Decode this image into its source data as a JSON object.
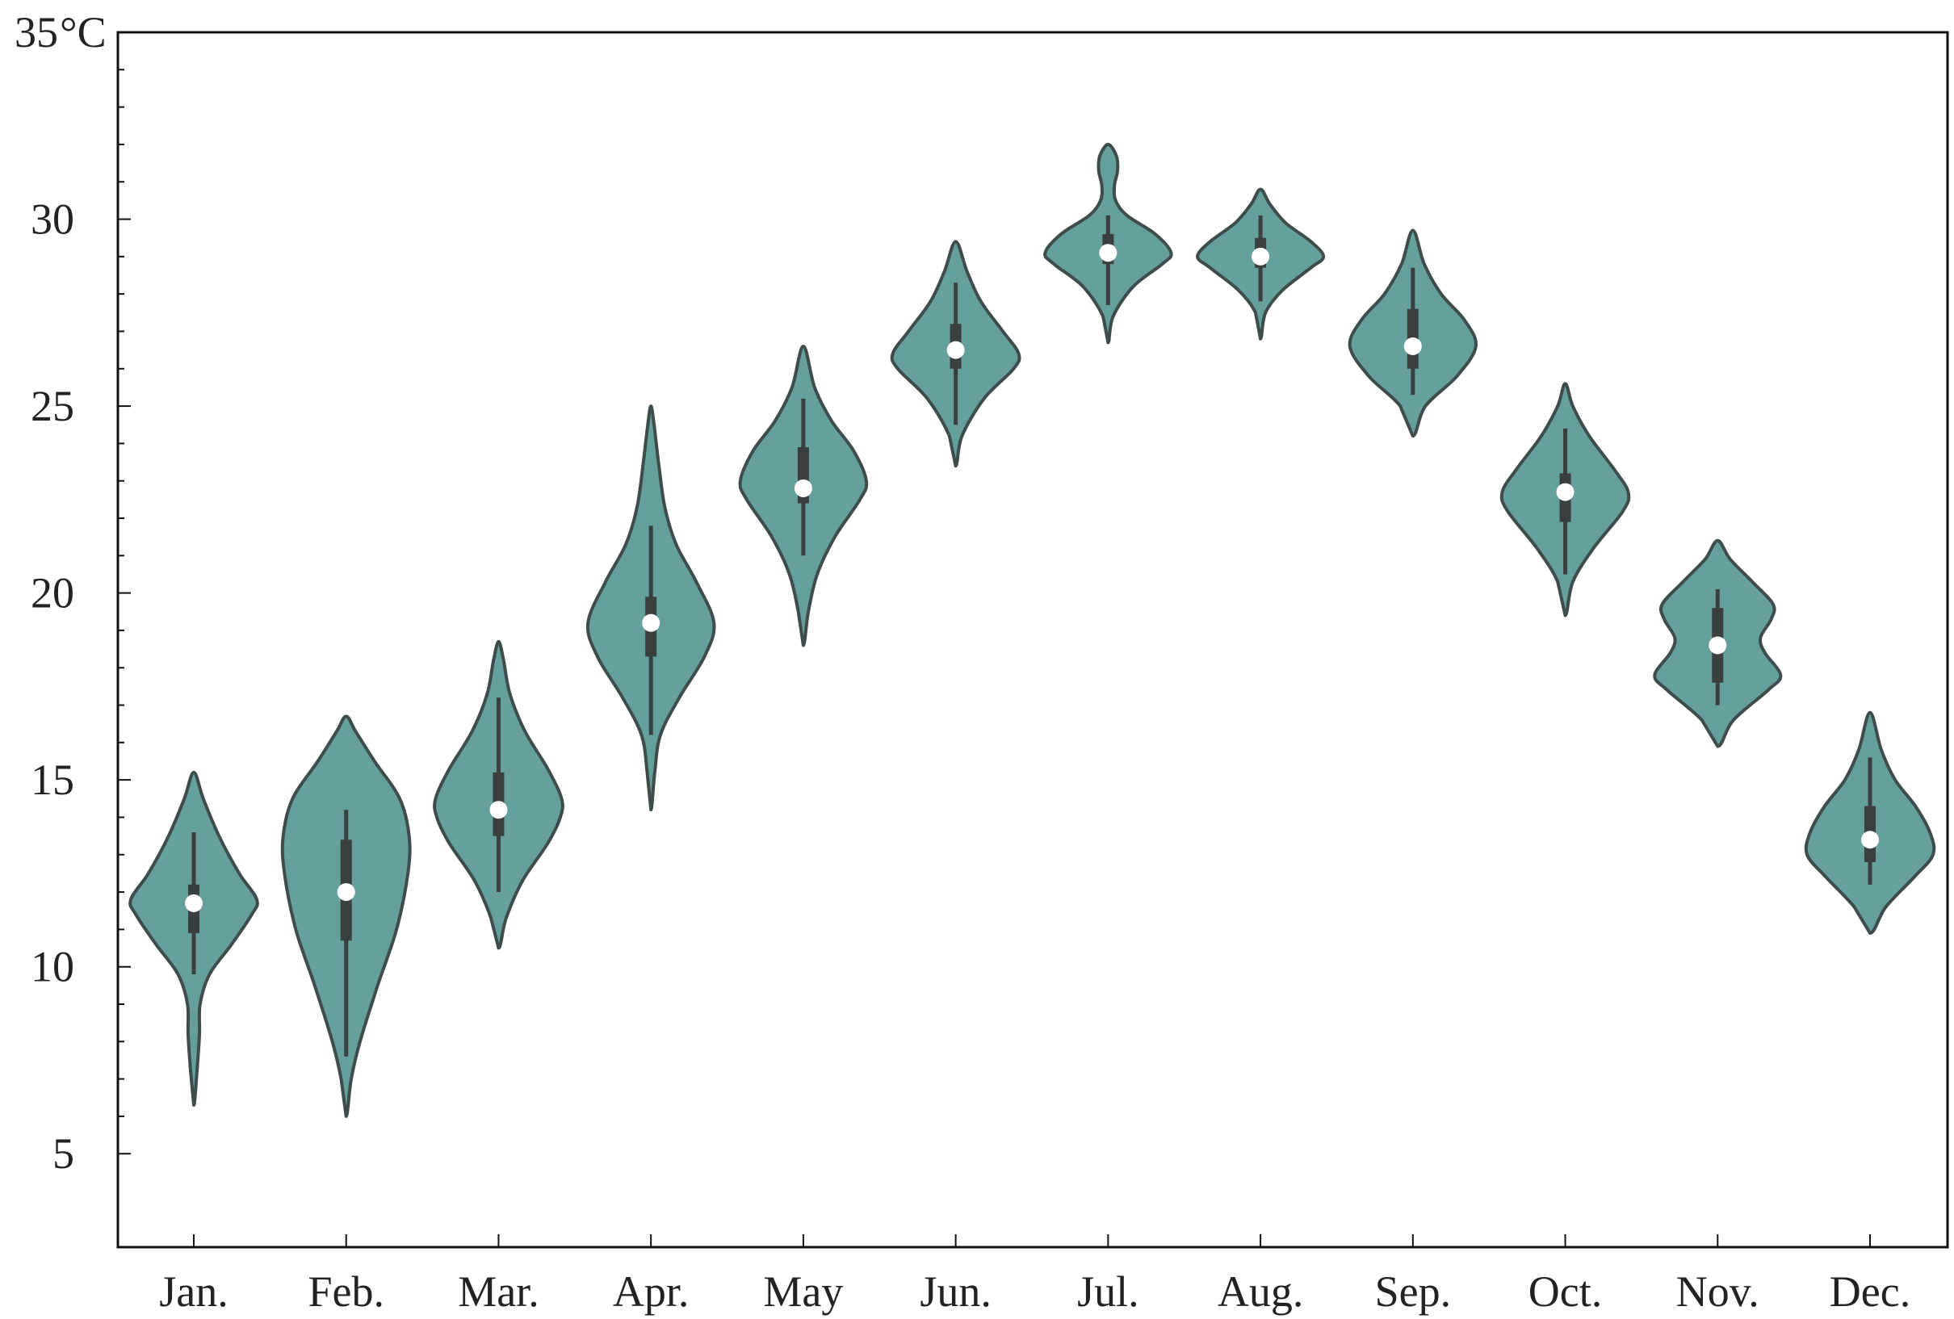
{
  "chart_data": {
    "type": "violin",
    "title": "",
    "xlabel": "",
    "ylabel": "",
    "y_unit_label": "°C",
    "ylim": [
      2.5,
      35
    ],
    "yticks": [
      5,
      10,
      15,
      20,
      25,
      30,
      35
    ],
    "ytick_labels": [
      "5",
      "10",
      "15",
      "20",
      "25",
      "30",
      "35"
    ],
    "grid": false,
    "legend": "none",
    "colors": {
      "fill": "#66a09d",
      "outline": "#3e4c4b",
      "box": "#3a3f40",
      "median": "#ffffff"
    },
    "categories": [
      "Jan.",
      "Feb.",
      "Mar.",
      "Apr.",
      "May",
      "Jun.",
      "Jul.",
      "Aug.",
      "Sep.",
      "Oct.",
      "Nov.",
      "Dec."
    ],
    "violins": [
      {
        "category": "Jan.",
        "min": 6.3,
        "max": 15.2,
        "q1": 10.9,
        "median": 11.7,
        "q3": 12.2,
        "whisker_low": 9.8,
        "whisker_high": 13.6,
        "profile": [
          [
            6.3,
            0
          ],
          [
            7.2,
            0.05
          ],
          [
            8.2,
            0.09
          ],
          [
            9.0,
            0.1
          ],
          [
            9.8,
            0.25
          ],
          [
            10.6,
            0.6
          ],
          [
            11.4,
            0.92
          ],
          [
            11.8,
            1.0
          ],
          [
            12.5,
            0.72
          ],
          [
            13.5,
            0.4
          ],
          [
            14.5,
            0.15
          ],
          [
            15.2,
            0
          ]
        ]
      },
      {
        "category": "Feb.",
        "min": 6.0,
        "max": 16.7,
        "q1": 10.7,
        "median": 12.0,
        "q3": 13.4,
        "whisker_low": 7.6,
        "whisker_high": 14.2,
        "profile": [
          [
            6.0,
            0
          ],
          [
            7.0,
            0.08
          ],
          [
            8.0,
            0.22
          ],
          [
            9.5,
            0.5
          ],
          [
            11.0,
            0.8
          ],
          [
            12.5,
            0.98
          ],
          [
            13.5,
            1.0
          ],
          [
            14.5,
            0.85
          ],
          [
            15.5,
            0.45
          ],
          [
            16.3,
            0.15
          ],
          [
            16.7,
            0
          ]
        ]
      },
      {
        "category": "Mar.",
        "min": 10.5,
        "max": 18.7,
        "q1": 13.5,
        "median": 14.2,
        "q3": 15.2,
        "whisker_low": 12.0,
        "whisker_high": 17.2,
        "profile": [
          [
            10.5,
            0
          ],
          [
            11.3,
            0.12
          ],
          [
            12.3,
            0.38
          ],
          [
            13.3,
            0.78
          ],
          [
            14.0,
            0.98
          ],
          [
            14.5,
            1.0
          ],
          [
            15.3,
            0.78
          ],
          [
            16.3,
            0.42
          ],
          [
            17.3,
            0.18
          ],
          [
            18.2,
            0.08
          ],
          [
            18.7,
            0
          ]
        ]
      },
      {
        "category": "Apr.",
        "min": 14.2,
        "max": 25.0,
        "q1": 18.3,
        "median": 19.2,
        "q3": 19.9,
        "whisker_low": 16.2,
        "whisker_high": 21.8,
        "profile": [
          [
            14.2,
            0
          ],
          [
            15.2,
            0.06
          ],
          [
            16.2,
            0.15
          ],
          [
            17.2,
            0.45
          ],
          [
            18.3,
            0.85
          ],
          [
            19.2,
            1.0
          ],
          [
            20.3,
            0.72
          ],
          [
            21.3,
            0.4
          ],
          [
            22.3,
            0.22
          ],
          [
            23.5,
            0.12
          ],
          [
            24.5,
            0.05
          ],
          [
            25.0,
            0
          ]
        ]
      },
      {
        "category": "May",
        "min": 18.6,
        "max": 26.6,
        "q1": 22.4,
        "median": 22.8,
        "q3": 23.9,
        "whisker_low": 21.0,
        "whisker_high": 25.2,
        "profile": [
          [
            18.6,
            0
          ],
          [
            19.5,
            0.08
          ],
          [
            20.5,
            0.22
          ],
          [
            21.5,
            0.5
          ],
          [
            22.5,
            0.9
          ],
          [
            23.0,
            1.0
          ],
          [
            23.8,
            0.8
          ],
          [
            24.6,
            0.45
          ],
          [
            25.5,
            0.18
          ],
          [
            26.6,
            0
          ]
        ]
      },
      {
        "category": "Jun.",
        "min": 23.4,
        "max": 29.4,
        "q1": 26.0,
        "median": 26.5,
        "q3": 27.2,
        "whisker_low": 24.5,
        "whisker_high": 28.3,
        "profile": [
          [
            23.4,
            0
          ],
          [
            24.2,
            0.1
          ],
          [
            25.2,
            0.45
          ],
          [
            26.0,
            0.92
          ],
          [
            26.4,
            1.0
          ],
          [
            27.0,
            0.75
          ],
          [
            27.8,
            0.4
          ],
          [
            28.6,
            0.18
          ],
          [
            29.4,
            0
          ]
        ]
      },
      {
        "category": "Jul.",
        "min": 26.7,
        "max": 32.0,
        "q1": 28.8,
        "median": 29.1,
        "q3": 29.6,
        "whisker_low": 27.7,
        "whisker_high": 30.1,
        "profile": [
          [
            26.7,
            0
          ],
          [
            27.4,
            0.08
          ],
          [
            28.2,
            0.4
          ],
          [
            28.8,
            0.86
          ],
          [
            29.1,
            1.0
          ],
          [
            29.6,
            0.75
          ],
          [
            30.1,
            0.3
          ],
          [
            30.5,
            0.12
          ],
          [
            30.9,
            0.1
          ],
          [
            31.3,
            0.15
          ],
          [
            31.7,
            0.13
          ],
          [
            32.0,
            0
          ]
        ]
      },
      {
        "category": "Aug.",
        "min": 26.8,
        "max": 30.8,
        "q1": 28.7,
        "median": 29.0,
        "q3": 29.5,
        "whisker_low": 27.8,
        "whisker_high": 30.1,
        "profile": [
          [
            26.8,
            0
          ],
          [
            27.5,
            0.08
          ],
          [
            28.1,
            0.35
          ],
          [
            28.7,
            0.8
          ],
          [
            29.0,
            1.0
          ],
          [
            29.4,
            0.8
          ],
          [
            29.9,
            0.4
          ],
          [
            30.4,
            0.15
          ],
          [
            30.8,
            0
          ]
        ]
      },
      {
        "category": "Sep.",
        "min": 24.2,
        "max": 29.7,
        "q1": 26.0,
        "median": 26.6,
        "q3": 27.6,
        "whisker_low": 25.3,
        "whisker_high": 28.7,
        "profile": [
          [
            24.2,
            0
          ],
          [
            25.0,
            0.2
          ],
          [
            25.8,
            0.7
          ],
          [
            26.6,
            1.0
          ],
          [
            27.3,
            0.82
          ],
          [
            28.0,
            0.45
          ],
          [
            28.8,
            0.18
          ],
          [
            29.7,
            0
          ]
        ]
      },
      {
        "category": "Oct.",
        "min": 19.4,
        "max": 25.6,
        "q1": 21.9,
        "median": 22.7,
        "q3": 23.2,
        "whisker_low": 20.5,
        "whisker_high": 24.4,
        "profile": [
          [
            19.4,
            0
          ],
          [
            20.3,
            0.12
          ],
          [
            21.2,
            0.45
          ],
          [
            22.2,
            0.92
          ],
          [
            22.7,
            1.0
          ],
          [
            23.3,
            0.78
          ],
          [
            24.2,
            0.38
          ],
          [
            25.0,
            0.12
          ],
          [
            25.6,
            0
          ]
        ]
      },
      {
        "category": "Nov.",
        "min": 15.9,
        "max": 21.4,
        "q1": 17.6,
        "median": 18.6,
        "q3": 19.6,
        "whisker_low": 17.0,
        "whisker_high": 20.1,
        "profile": [
          [
            15.9,
            0
          ],
          [
            16.6,
            0.25
          ],
          [
            17.4,
            0.8
          ],
          [
            17.8,
            1.0
          ],
          [
            18.4,
            0.75
          ],
          [
            18.8,
            0.68
          ],
          [
            19.3,
            0.85
          ],
          [
            19.7,
            0.88
          ],
          [
            20.3,
            0.55
          ],
          [
            20.9,
            0.2
          ],
          [
            21.4,
            0
          ]
        ]
      },
      {
        "category": "Dec.",
        "min": 10.9,
        "max": 16.8,
        "q1": 12.8,
        "median": 13.4,
        "q3": 14.3,
        "whisker_low": 12.2,
        "whisker_high": 15.6,
        "profile": [
          [
            10.9,
            0
          ],
          [
            11.6,
            0.25
          ],
          [
            12.4,
            0.7
          ],
          [
            13.0,
            1.0
          ],
          [
            13.6,
            0.95
          ],
          [
            14.3,
            0.72
          ],
          [
            15.0,
            0.4
          ],
          [
            15.8,
            0.18
          ],
          [
            16.8,
            0
          ]
        ]
      }
    ]
  }
}
